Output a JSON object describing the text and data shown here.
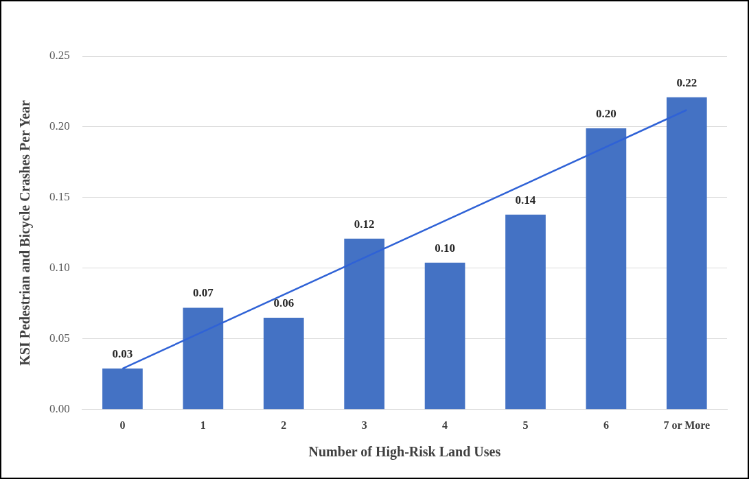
{
  "chart_data": {
    "type": "bar",
    "xlabel": "Number of High-Risk Land Uses",
    "ylabel": "KSI Pedestrian and Bicycle Crashes Per Year",
    "categories": [
      "0",
      "1",
      "2",
      "3",
      "4",
      "5",
      "6",
      "7 or More"
    ],
    "series": [
      {
        "color": "#4472c4",
        "values": [
          0.029,
          0.072,
          0.065,
          0.121,
          0.104,
          0.138,
          0.199,
          0.221
        ],
        "value_labels": [
          "0.03",
          "0.07",
          "0.06",
          "0.12",
          "0.10",
          "0.14",
          "0.20",
          "0.22"
        ]
      },
      {
        "type": "line",
        "color": "#2f62d6",
        "x": [
          "0",
          "7 or More"
        ],
        "values": [
          0.029,
          0.212
        ]
      }
    ],
    "ylim": [
      0,
      0.25
    ],
    "yticks": [
      {
        "value": 0,
        "label": "0.00"
      },
      {
        "value": 0.05,
        "label": "0.05"
      },
      {
        "value": 0.1,
        "label": "0.10"
      },
      {
        "value": 0.15,
        "label": "0.15"
      },
      {
        "value": 0.2,
        "label": "0.20"
      },
      {
        "value": 0.25,
        "label": "0.25"
      }
    ],
    "grid": "y",
    "marker": "none"
  }
}
